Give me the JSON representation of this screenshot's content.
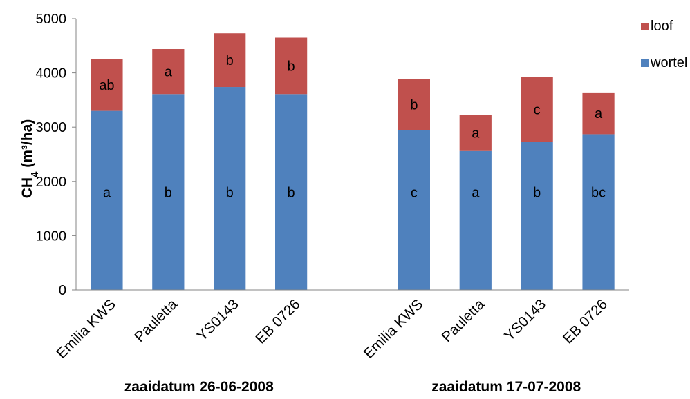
{
  "chart_data": {
    "type": "bar",
    "stacked": true,
    "ylim": [
      0,
      5000
    ],
    "yticks": [
      "0",
      "1000",
      "2000",
      "3000",
      "4000",
      "5000"
    ],
    "ylabel_main": "CH",
    "ylabel_sub": "4",
    "ylabel_unit": " (m³/ha)",
    "legend_position": "top-right",
    "grid": false,
    "colors": {
      "wortel": "#4f81bd",
      "loof": "#c0504d"
    },
    "groups": [
      {
        "label": "zaaidatum 26-06-2008",
        "categories": [
          "Emilia KWS",
          "Pauletta",
          "YS0143",
          "EB 0726"
        ],
        "wortel": [
          3300,
          3610,
          3740,
          3610
        ],
        "loof": [
          960,
          830,
          990,
          1040
        ],
        "wortel_letters": [
          "a",
          "b",
          "b",
          "b"
        ],
        "loof_letters": [
          "ab",
          "a",
          "b",
          "b"
        ]
      },
      {
        "label": "zaaidatum 17-07-2008",
        "categories": [
          "Emilia KWS",
          "Pauletta",
          "YS0143",
          "EB 0726"
        ],
        "wortel": [
          2940,
          2560,
          2730,
          2870
        ],
        "loof": [
          950,
          670,
          1190,
          770
        ],
        "wortel_letters": [
          "c",
          "a",
          "b",
          "bc"
        ],
        "loof_letters": [
          "b",
          "a",
          "c",
          "a"
        ]
      }
    ],
    "series": [
      {
        "name": "loof"
      },
      {
        "name": "wortel"
      }
    ]
  }
}
